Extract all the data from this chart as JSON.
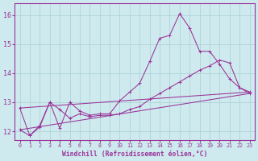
{
  "xlabel": "Windchill (Refroidissement éolien,°C)",
  "xlim": [
    -0.5,
    23.5
  ],
  "ylim": [
    11.7,
    16.4
  ],
  "yticks": [
    12,
    13,
    14,
    15,
    16
  ],
  "xticks": [
    0,
    1,
    2,
    3,
    4,
    5,
    6,
    7,
    8,
    9,
    10,
    11,
    12,
    13,
    14,
    15,
    16,
    17,
    18,
    19,
    20,
    21,
    22,
    23
  ],
  "background_color": "#ceeaee",
  "grid_color": "#aed4d8",
  "line_color": "#993399",
  "line1_x": [
    0,
    1,
    2,
    3,
    4,
    5,
    6,
    7,
    8,
    9,
    10,
    11,
    12,
    13,
    14,
    15,
    16,
    17,
    18,
    19,
    20,
    21,
    22,
    23
  ],
  "line1_y": [
    12.8,
    11.85,
    12.15,
    13.0,
    12.1,
    13.0,
    12.7,
    12.55,
    12.6,
    12.6,
    13.05,
    13.35,
    13.65,
    14.4,
    15.2,
    15.3,
    16.05,
    15.55,
    14.75,
    14.75,
    14.3,
    13.8,
    13.5,
    13.35
  ],
  "line2_x": [
    0,
    1,
    2,
    3,
    4,
    5,
    6,
    7,
    8,
    9,
    10,
    11,
    12,
    13,
    14,
    15,
    16,
    17,
    18,
    19,
    20,
    21,
    22,
    23
  ],
  "line2_y": [
    12.05,
    11.85,
    12.2,
    13.0,
    12.75,
    12.45,
    12.6,
    12.5,
    12.55,
    12.55,
    12.6,
    12.75,
    12.85,
    13.1,
    13.3,
    13.5,
    13.7,
    13.9,
    14.1,
    14.25,
    14.45,
    14.35,
    13.5,
    13.3
  ],
  "line3_x": [
    0,
    23
  ],
  "line3_y": [
    12.05,
    13.3
  ],
  "line4_x": [
    0,
    23
  ],
  "line4_y": [
    12.8,
    13.35
  ]
}
